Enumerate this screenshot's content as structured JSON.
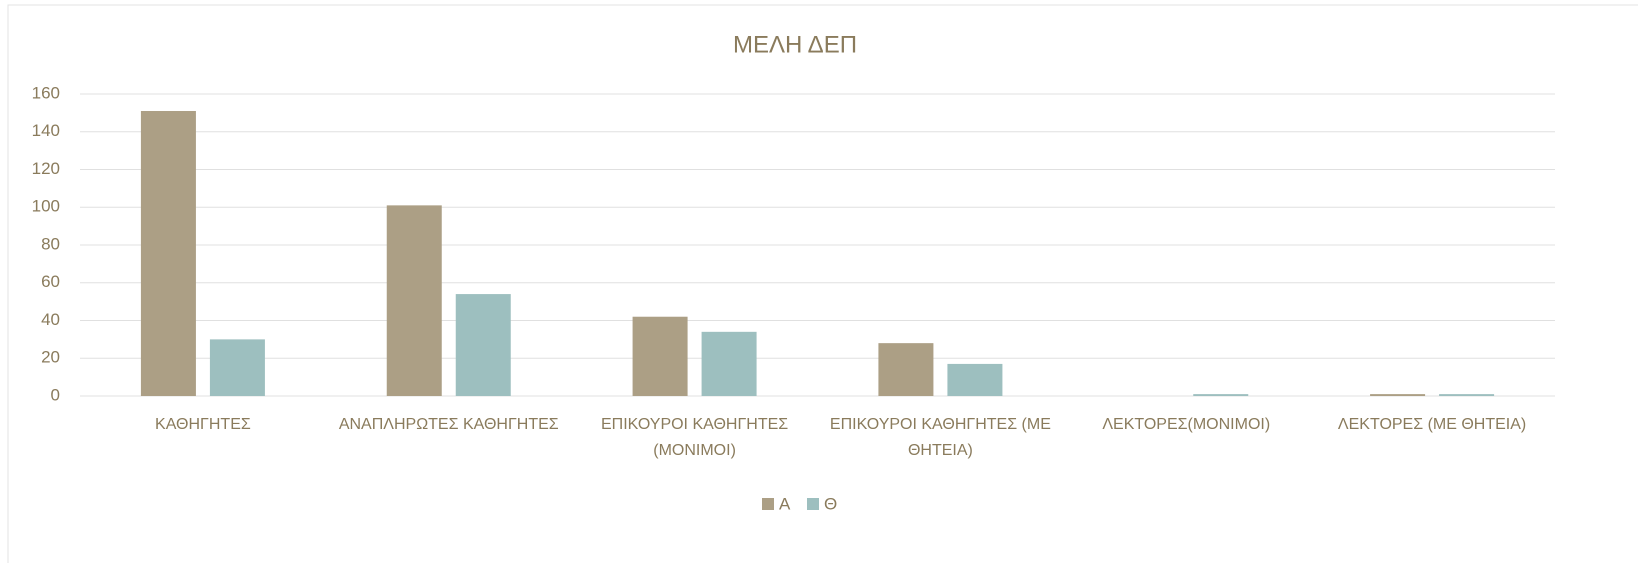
{
  "chart_data": {
    "type": "bar",
    "title": "ΜΕΛΗ ΔΕΠ",
    "categories": [
      "ΚΑΘΗΓΗΤΕΣ",
      "ΑΝΑΠΛΗΡΩΤΕΣ ΚΑΘΗΓΗΤΕΣ",
      "ΕΠΙΚΟΥΡΟΙ ΚΑΘΗΓΗΤΕΣ (ΜΟΝΙΜΟΙ)",
      "ΕΠΙΚΟΥΡΟΙ ΚΑΘΗΓΗΤΕΣ (ΜΕ ΘΗΤΕΙΑ)",
      "ΛΕΚΤΟΡΕΣ(ΜΟΝΙΜΟΙ)",
      "ΛΕΚΤΟΡΕΣ (ΜΕ ΘΗΤΕΙΑ)"
    ],
    "series": [
      {
        "name": "Α",
        "color": "#ac9f85",
        "values": [
          151,
          101,
          42,
          28,
          0,
          1
        ]
      },
      {
        "name": "Θ",
        "color": "#9dbfbf",
        "values": [
          30,
          54,
          34,
          17,
          1,
          1
        ]
      }
    ],
    "ylim": [
      0,
      160
    ],
    "yticks": [
      0,
      20,
      40,
      60,
      80,
      100,
      120,
      140,
      160
    ],
    "grid": true,
    "legend": "bottom"
  }
}
